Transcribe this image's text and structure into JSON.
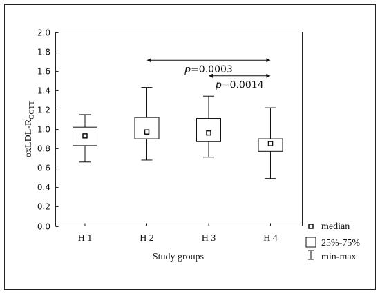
{
  "chart_data": {
    "type": "box",
    "xlabel": "Study groups",
    "ylabel_main": "oxLDL-R",
    "ylabel_subscript": "OGTT",
    "ylim": [
      0.0,
      2.0
    ],
    "yticks": [
      0.0,
      0.2,
      0.4,
      0.6,
      0.8,
      1.0,
      1.2,
      1.4,
      1.6,
      1.8,
      2.0
    ],
    "ytick_labels": [
      "0.0",
      "0.2",
      "0.4",
      "0.6",
      "0.8",
      "1.0",
      "1.2",
      "1.4",
      "1.6",
      "1.8",
      "2.0"
    ],
    "categories": [
      "H1",
      "H2",
      "H3",
      "H4"
    ],
    "boxes": [
      {
        "group": "H1",
        "min": 0.66,
        "q1": 0.83,
        "median": 0.93,
        "q3": 1.02,
        "max": 1.15
      },
      {
        "group": "H2",
        "min": 0.68,
        "q1": 0.9,
        "median": 0.97,
        "q3": 1.12,
        "max": 1.43
      },
      {
        "group": "H3",
        "min": 0.71,
        "q1": 0.87,
        "median": 0.96,
        "q3": 1.11,
        "max": 1.34
      },
      {
        "group": "H4",
        "min": 0.49,
        "q1": 0.77,
        "median": 0.85,
        "q3": 0.9,
        "max": 1.22
      }
    ],
    "comparisons": [
      {
        "from": "H2",
        "to": "H4",
        "y": 1.71,
        "p_prefix": "p",
        "p_value": "=0.0003"
      },
      {
        "from": "H3",
        "to": "H4",
        "y": 1.55,
        "p_prefix": "p",
        "p_value": "=0.0014"
      }
    ],
    "legend": {
      "position": "bottom-right",
      "median": "median",
      "box": "25%-75%",
      "whisker": "min-max"
    },
    "grid": false
  }
}
